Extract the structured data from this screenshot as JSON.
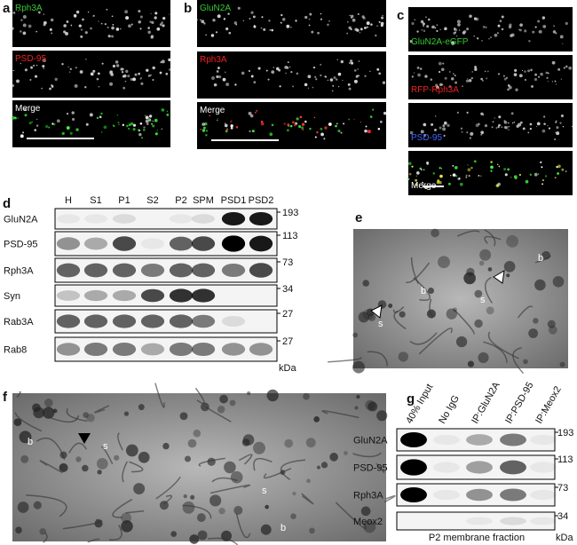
{
  "panels": {
    "a": {
      "label": "a",
      "channels": [
        "Rph3A",
        "PSD-95",
        "Merge"
      ]
    },
    "b": {
      "label": "b",
      "channels": [
        "GluN2A",
        "Rph3A",
        "Merge"
      ]
    },
    "c": {
      "label": "c",
      "channels": [
        "GluN2A-eGFP",
        "RFP-Rph3A",
        "PSD-95",
        "Merge"
      ]
    },
    "d": {
      "label": "d",
      "lanes": [
        "H",
        "S1",
        "P1",
        "S2",
        "P2",
        "SPM",
        "PSD1",
        "PSD2"
      ],
      "rows": [
        "GluN2A",
        "PSD-95",
        "Rph3A",
        "Syn",
        "Rab3A",
        "Rab8"
      ],
      "markers": [
        193,
        113,
        73,
        34,
        27,
        27
      ],
      "unit": "kDa"
    },
    "e": {
      "label": "e",
      "annotations": [
        "b",
        "b",
        "s",
        "s"
      ]
    },
    "f": {
      "label": "f",
      "annotations": [
        "b",
        "s",
        "s",
        "b"
      ]
    },
    "g": {
      "label": "g",
      "lanes": [
        "40% Input",
        "No IgG",
        "IP:GluN2A",
        "IP:PSD-95",
        "IP:Meox2"
      ],
      "rows": [
        "GluN2A",
        "PSD-95",
        "Rph3A",
        "Meox2"
      ],
      "markers": [
        193,
        113,
        73,
        34
      ],
      "unit": "kDa",
      "caption": "P2 membrane fraction"
    }
  }
}
